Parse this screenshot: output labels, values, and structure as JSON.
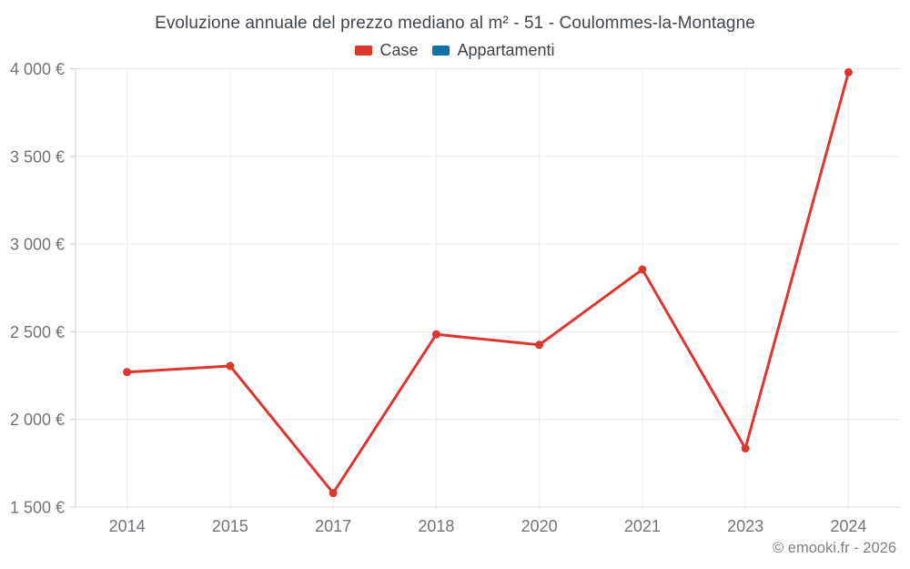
{
  "page": {
    "copyright": "© emooki.fr - 2026"
  },
  "legend": {
    "items": [
      {
        "label": "Case",
        "color": "#dc362e"
      },
      {
        "label": "Appartamenti",
        "color": "#1273a6"
      }
    ]
  },
  "chart_data": {
    "type": "line",
    "title": "Evoluzione annuale del prezzo mediano al m² - 51 - Coulommes-la-Montagne",
    "categories": [
      "2014",
      "2015",
      "2017",
      "2018",
      "2020",
      "2021",
      "2023",
      "2024"
    ],
    "series": [
      {
        "name": "Case",
        "color": "#dc362e",
        "values": [
          2270,
          2305,
          1580,
          2485,
          2425,
          2855,
          1835,
          3980
        ]
      },
      {
        "name": "Appartamenti",
        "color": "#1273a6",
        "values": []
      }
    ],
    "xlabel": "",
    "ylabel": "",
    "ylim": [
      1500,
      4000
    ],
    "ytick_step": 500,
    "ytick_labels": [
      "1 500 €",
      "2 000 €",
      "2 500 €",
      "3 000 €",
      "3 500 €",
      "4 000 €"
    ],
    "currency_suffix": "€",
    "grid": true,
    "legend_position": "top",
    "point_style": "circle"
  }
}
